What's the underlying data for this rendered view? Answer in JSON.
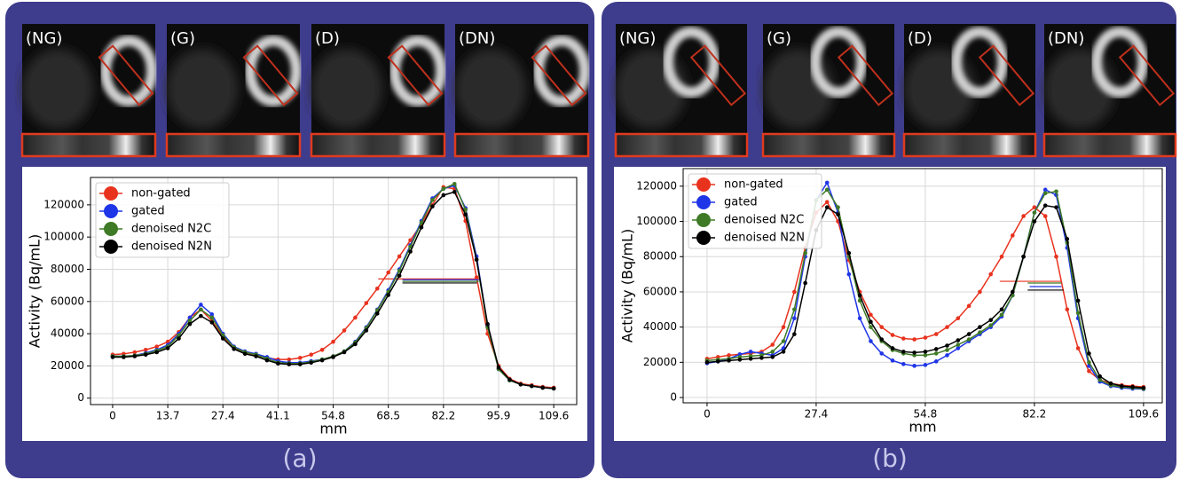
{
  "panels": [
    {
      "caption": "(a)",
      "images": [
        "(NG)",
        "(G)",
        "(D)",
        "(DN)"
      ]
    },
    {
      "caption": "(b)",
      "images": [
        "(NG)",
        "(G)",
        "(D)",
        "(DN)"
      ]
    }
  ],
  "chart_data": [
    {
      "type": "line",
      "xlabel": "mm",
      "ylabel": "Activity (Bq/mL)",
      "grid": true,
      "legend": "upper left",
      "xlim": [
        -5.5,
        115.3
      ],
      "ylim": [
        -4000,
        137000
      ],
      "xticks": [
        0,
        13.7,
        27.4,
        41.1,
        54.8,
        68.5,
        82.2,
        95.9,
        109.6
      ],
      "yticks": [
        0,
        20000,
        40000,
        60000,
        80000,
        100000,
        120000
      ],
      "x": [
        0,
        2.74,
        5.48,
        8.22,
        10.96,
        13.7,
        16.44,
        19.18,
        21.92,
        24.66,
        27.4,
        30.14,
        32.88,
        35.62,
        38.36,
        41.1,
        43.84,
        46.58,
        49.32,
        52.06,
        54.8,
        57.54,
        60.28,
        63.02,
        65.76,
        68.5,
        71.24,
        73.98,
        76.72,
        79.46,
        82.2,
        84.94,
        87.68,
        90.42,
        93.16,
        95.9,
        98.64,
        101.38,
        104.12,
        106.86,
        109.6
      ],
      "series": [
        {
          "name": "non-gated",
          "color": "#e8321e",
          "fwhm": {
            "x": [
              66,
              91
            ],
            "y": 74000
          },
          "values": [
            27000,
            27500,
            28500,
            30000,
            32000,
            35000,
            41000,
            50000,
            55000,
            48000,
            38000,
            31000,
            28000,
            26500,
            25000,
            24000,
            24000,
            25000,
            27000,
            30000,
            35000,
            42000,
            50000,
            59000,
            68000,
            78000,
            88000,
            98000,
            108000,
            120000,
            131000,
            130000,
            110000,
            75000,
            40000,
            20000,
            12000,
            9000,
            8000,
            7000,
            6500
          ]
        },
        {
          "name": "gated",
          "color": "#1f35e8",
          "fwhm": {
            "x": [
              72,
              91
            ],
            "y": 73500
          },
          "values": [
            26000,
            26000,
            26500,
            28000,
            30000,
            33000,
            40000,
            50000,
            58000,
            52000,
            40000,
            32000,
            29000,
            27500,
            25500,
            23000,
            22000,
            22000,
            23000,
            24000,
            26000,
            29000,
            35000,
            44000,
            55000,
            67000,
            80000,
            95000,
            110000,
            124000,
            130000,
            132000,
            118000,
            88000,
            45000,
            18000,
            11000,
            8500,
            7500,
            6500,
            6000
          ]
        },
        {
          "name": "denoised N2C",
          "color": "#3f7a26",
          "fwhm": {
            "x": [
              72,
              91
            ],
            "y": 72500
          },
          "values": [
            26000,
            26000,
            26500,
            27500,
            29500,
            32000,
            39000,
            48000,
            55000,
            50000,
            39000,
            31500,
            28500,
            27000,
            24500,
            22000,
            21500,
            21500,
            22500,
            24000,
            26000,
            29000,
            34500,
            43500,
            54500,
            66000,
            79000,
            94000,
            109000,
            123000,
            130000,
            133000,
            117000,
            86000,
            44000,
            18000,
            11000,
            8500,
            7500,
            6500,
            6000
          ]
        },
        {
          "name": "denoised N2N",
          "color": "#000000",
          "fwhm": {
            "x": [
              72,
              90.5
            ],
            "y": 71500
          },
          "values": [
            25500,
            25500,
            26000,
            27000,
            28500,
            31000,
            37000,
            46000,
            51000,
            47000,
            37000,
            30500,
            27500,
            26000,
            23500,
            21500,
            21000,
            21000,
            22000,
            23500,
            25500,
            28500,
            33500,
            42000,
            52500,
            64000,
            76000,
            91000,
            106000,
            119000,
            126000,
            128000,
            114000,
            86000,
            46000,
            19000,
            11500,
            8500,
            7500,
            6500,
            6000
          ]
        }
      ]
    },
    {
      "type": "line",
      "xlabel": "mm",
      "ylabel": "Activity (Bq/mL)",
      "grid": true,
      "legend": "upper left",
      "xlim": [
        -6,
        114.3
      ],
      "ylim": [
        -3000,
        130000
      ],
      "xticks": [
        0,
        27.4,
        54.8,
        82.2,
        109.6
      ],
      "yticks": [
        0,
        20000,
        40000,
        60000,
        80000,
        100000,
        120000
      ],
      "x": [
        0,
        2.74,
        5.48,
        8.22,
        10.96,
        13.7,
        16.44,
        19.18,
        21.92,
        24.66,
        27.4,
        30.14,
        32.88,
        35.62,
        38.36,
        41.1,
        43.84,
        46.58,
        49.32,
        52.06,
        54.8,
        57.54,
        60.28,
        63.02,
        65.76,
        68.5,
        71.24,
        73.98,
        76.72,
        79.46,
        82.2,
        84.94,
        87.68,
        90.42,
        93.16,
        95.9,
        98.64,
        101.38,
        104.12,
        106.86,
        109.6
      ],
      "series": [
        {
          "name": "non-gated",
          "color": "#e8321e",
          "fwhm": {
            "x": [
              73.5,
              89
            ],
            "y": 66000
          },
          "values": [
            22000,
            23000,
            24000,
            24500,
            25000,
            26000,
            30000,
            40000,
            60000,
            85000,
            105000,
            111000,
            100000,
            78000,
            60000,
            47000,
            40000,
            35500,
            33500,
            33000,
            34000,
            36000,
            40000,
            45000,
            52000,
            60000,
            70000,
            80000,
            92000,
            103000,
            108000,
            103000,
            80000,
            50000,
            28000,
            15000,
            10000,
            8000,
            7000,
            6500,
            6000
          ]
        },
        {
          "name": "gated",
          "color": "#1f35e8",
          "fwhm": {
            "x": [
              81,
              89
            ],
            "y": 63000
          },
          "values": [
            19500,
            20500,
            22000,
            24500,
            26000,
            25000,
            24000,
            28000,
            45000,
            80000,
            112000,
            122000,
            105000,
            70000,
            45000,
            32000,
            25000,
            21000,
            19000,
            18000,
            18500,
            20500,
            24000,
            28000,
            32000,
            36000,
            40000,
            46000,
            58000,
            80000,
            105000,
            118000,
            115000,
            85000,
            45000,
            18000,
            9000,
            6500,
            5500,
            5000,
            4800
          ]
        },
        {
          "name": "denoised N2C",
          "color": "#3f7a26",
          "fwhm": {
            "x": [
              80.5,
              89
            ],
            "y": 65000
          },
          "values": [
            21000,
            21500,
            22000,
            23000,
            23500,
            24000,
            26000,
            32000,
            50000,
            82000,
            112000,
            118000,
            108000,
            80000,
            55000,
            40000,
            32000,
            27000,
            25000,
            24000,
            24000,
            25000,
            27000,
            30000,
            33000,
            37000,
            41000,
            47000,
            58000,
            80000,
            105000,
            116000,
            117000,
            88000,
            48000,
            20000,
            10000,
            7000,
            6000,
            5500,
            5000
          ]
        },
        {
          "name": "denoised N2N",
          "color": "#000000",
          "fwhm": {
            "x": [
              80.5,
              89.5
            ],
            "y": 61000
          },
          "values": [
            20000,
            20500,
            21000,
            21500,
            22000,
            22500,
            23000,
            26000,
            36000,
            65000,
            95000,
            108000,
            104000,
            82000,
            58000,
            43000,
            33000,
            28000,
            26000,
            25500,
            26000,
            27500,
            29500,
            32500,
            36000,
            40000,
            44000,
            50000,
            60000,
            80000,
            100000,
            109000,
            108000,
            90000,
            55000,
            25000,
            12000,
            8000,
            6500,
            6000,
            5500
          ]
        }
      ]
    }
  ]
}
